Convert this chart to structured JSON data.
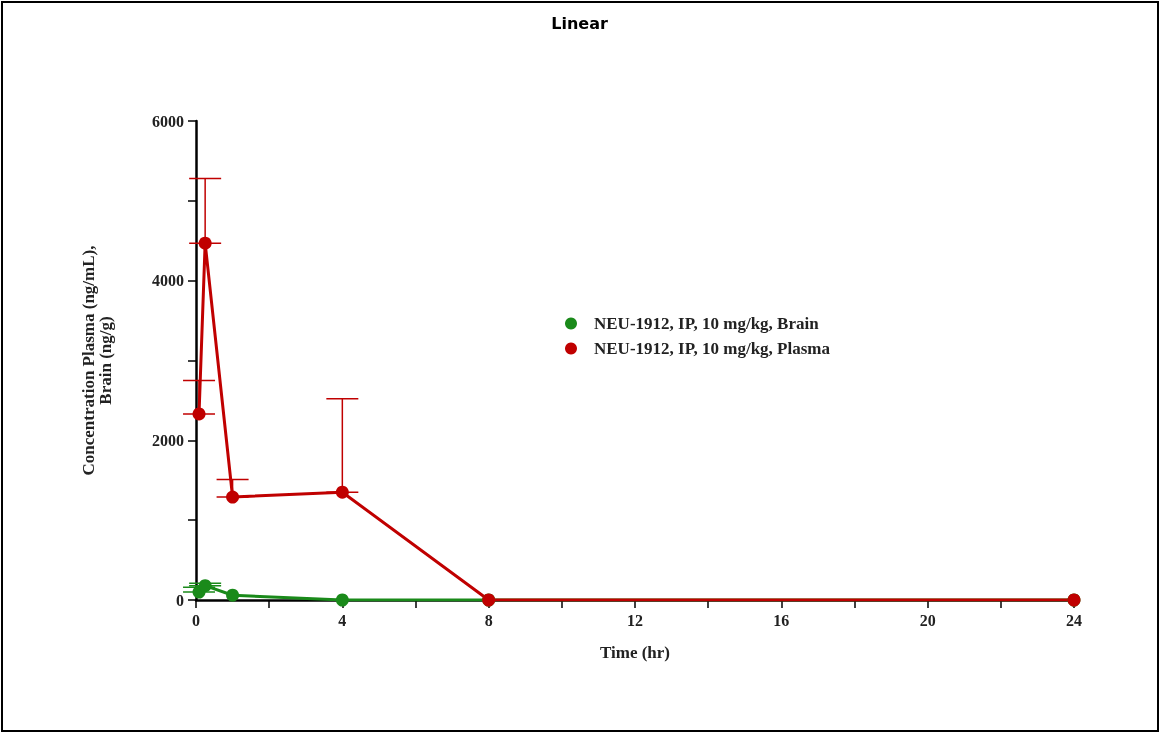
{
  "chart_data": {
    "type": "line",
    "title": "Linear",
    "xlabel": "Time (hr)",
    "ylabel": "Concentration Plasma (ng/mL),\nBrain (ng/g)",
    "x": [
      0.083,
      0.25,
      1,
      4,
      8,
      24
    ],
    "series": [
      {
        "name": "NEU-1912, IP, 10 mg/kg, Brain",
        "color": "#1a8a1a",
        "values": [
          100,
          180,
          60,
          0,
          0,
          0
        ],
        "errors": [
          [
            100,
            160
          ],
          [
            180,
            210
          ],
          null,
          null,
          null,
          null
        ]
      },
      {
        "name": "NEU-1912, IP, 10 mg/kg, Plasma",
        "color": "#c00000",
        "values": [
          2330,
          4470,
          1290,
          1350,
          0,
          0
        ],
        "errors": [
          [
            2330,
            2750
          ],
          [
            4470,
            5280
          ],
          [
            1290,
            1510
          ],
          [
            1350,
            2520
          ],
          null,
          null
        ]
      }
    ],
    "xlim": [
      0,
      24
    ],
    "xticks": [
      0,
      {
        "value": 2,
        "label": null
      },
      4,
      {
        "value": 6,
        "label": null
      },
      8,
      {
        "value": 10,
        "label": null
      },
      12,
      {
        "value": 14,
        "label": null
      },
      16,
      {
        "value": 18,
        "label": null
      },
      20,
      {
        "value": 22,
        "label": null
      },
      24
    ],
    "ylim": [
      0,
      6000
    ],
    "yticks": [
      0,
      {
        "value": 1000,
        "label": null
      },
      2000,
      {
        "value": 3000,
        "label": null
      },
      4000,
      {
        "value": 5000,
        "label": null
      },
      6000
    ],
    "marker": "circle",
    "line_style": "solid",
    "legend": "right",
    "grid": false
  }
}
